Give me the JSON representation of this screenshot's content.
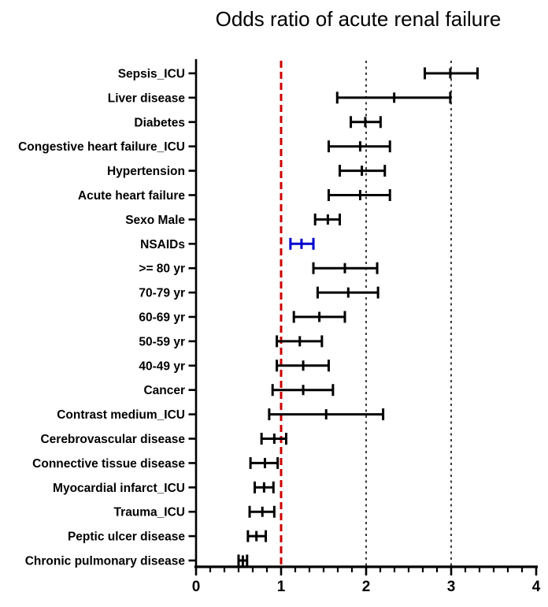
{
  "chart_data": {
    "type": "scatter",
    "subtype": "forest-plot-horizontal-error-bars",
    "title": "Odds ratio of acute renal failure",
    "xlabel": "",
    "ylabel": "",
    "xlim": [
      0,
      4
    ],
    "x_tick_labels": [
      "0",
      "1",
      "2",
      "3",
      "4"
    ],
    "x_tick_values": [
      0,
      1,
      2,
      3,
      4
    ],
    "minor_ticks_between_majors": 5,
    "grid": "vertical-reference-lines-only",
    "legend_position": "none",
    "colors": {
      "default_bar": "#000000",
      "highlight_bar": "#0000cd",
      "reference_null": "#cc0000",
      "reference_grid": "#3a3a3a",
      "axis": "#000000"
    },
    "reference_lines": [
      {
        "x": 1,
        "style": "dashed",
        "color": "#cc0000",
        "width": 3
      },
      {
        "x": 2,
        "style": "dotted",
        "color": "#3a3a3a",
        "width": 2
      },
      {
        "x": 3,
        "style": "dotted",
        "color": "#3a3a3a",
        "width": 2
      }
    ],
    "points": [
      {
        "label": "Sepsis_ICU",
        "or": 2.99,
        "ci_low": 2.69,
        "ci_high": 3.31,
        "color": "#000000"
      },
      {
        "label": "Liver disease",
        "or": 2.33,
        "ci_low": 1.66,
        "ci_high": 2.99,
        "color": "#000000"
      },
      {
        "label": "Diabetes",
        "or": 1.99,
        "ci_low": 1.82,
        "ci_high": 2.17,
        "color": "#000000"
      },
      {
        "label": "Congestive heart failure_ICU",
        "or": 1.93,
        "ci_low": 1.56,
        "ci_high": 2.28,
        "color": "#000000"
      },
      {
        "label": "Hypertension",
        "or": 1.95,
        "ci_low": 1.69,
        "ci_high": 2.22,
        "color": "#000000"
      },
      {
        "label": "Acute heart failure",
        "or": 1.93,
        "ci_low": 1.56,
        "ci_high": 2.28,
        "color": "#000000"
      },
      {
        "label": "Sexo Male",
        "or": 1.55,
        "ci_low": 1.4,
        "ci_high": 1.69,
        "color": "#000000"
      },
      {
        "label": "NSAIDs",
        "or": 1.24,
        "ci_low": 1.11,
        "ci_high": 1.38,
        "color": "#0000cd"
      },
      {
        "label": ">= 80 yr",
        "or": 1.75,
        "ci_low": 1.38,
        "ci_high": 2.13,
        "color": "#000000"
      },
      {
        "label": "70-79 yr",
        "or": 1.79,
        "ci_low": 1.43,
        "ci_high": 2.14,
        "color": "#000000"
      },
      {
        "label": "60-69 yr",
        "or": 1.45,
        "ci_low": 1.15,
        "ci_high": 1.75,
        "color": "#000000"
      },
      {
        "label": "50-59 yr",
        "or": 1.22,
        "ci_low": 0.95,
        "ci_high": 1.48,
        "color": "#000000"
      },
      {
        "label": "40-49 yr",
        "or": 1.26,
        "ci_low": 0.95,
        "ci_high": 1.56,
        "color": "#000000"
      },
      {
        "label": "Cancer",
        "or": 1.26,
        "ci_low": 0.9,
        "ci_high": 1.61,
        "color": "#000000"
      },
      {
        "label": "Contrast medium_ICU",
        "or": 1.53,
        "ci_low": 0.86,
        "ci_high": 2.2,
        "color": "#000000"
      },
      {
        "label": "Cerebrovascular disease",
        "or": 0.92,
        "ci_low": 0.77,
        "ci_high": 1.06,
        "color": "#000000"
      },
      {
        "label": "Connective tissue disease",
        "or": 0.81,
        "ci_low": 0.64,
        "ci_high": 0.96,
        "color": "#000000"
      },
      {
        "label": "Myocardial infarct_ICU",
        "or": 0.8,
        "ci_low": 0.69,
        "ci_high": 0.91,
        "color": "#000000"
      },
      {
        "label": "Trauma_ICU",
        "or": 0.78,
        "ci_low": 0.63,
        "ci_high": 0.92,
        "color": "#000000"
      },
      {
        "label": "Peptic ulcer disease",
        "or": 0.71,
        "ci_low": 0.61,
        "ci_high": 0.82,
        "color": "#000000"
      },
      {
        "label": "Chronic pulmonary disease",
        "or": 0.55,
        "ci_low": 0.5,
        "ci_high": 0.6,
        "color": "#000000"
      }
    ]
  }
}
